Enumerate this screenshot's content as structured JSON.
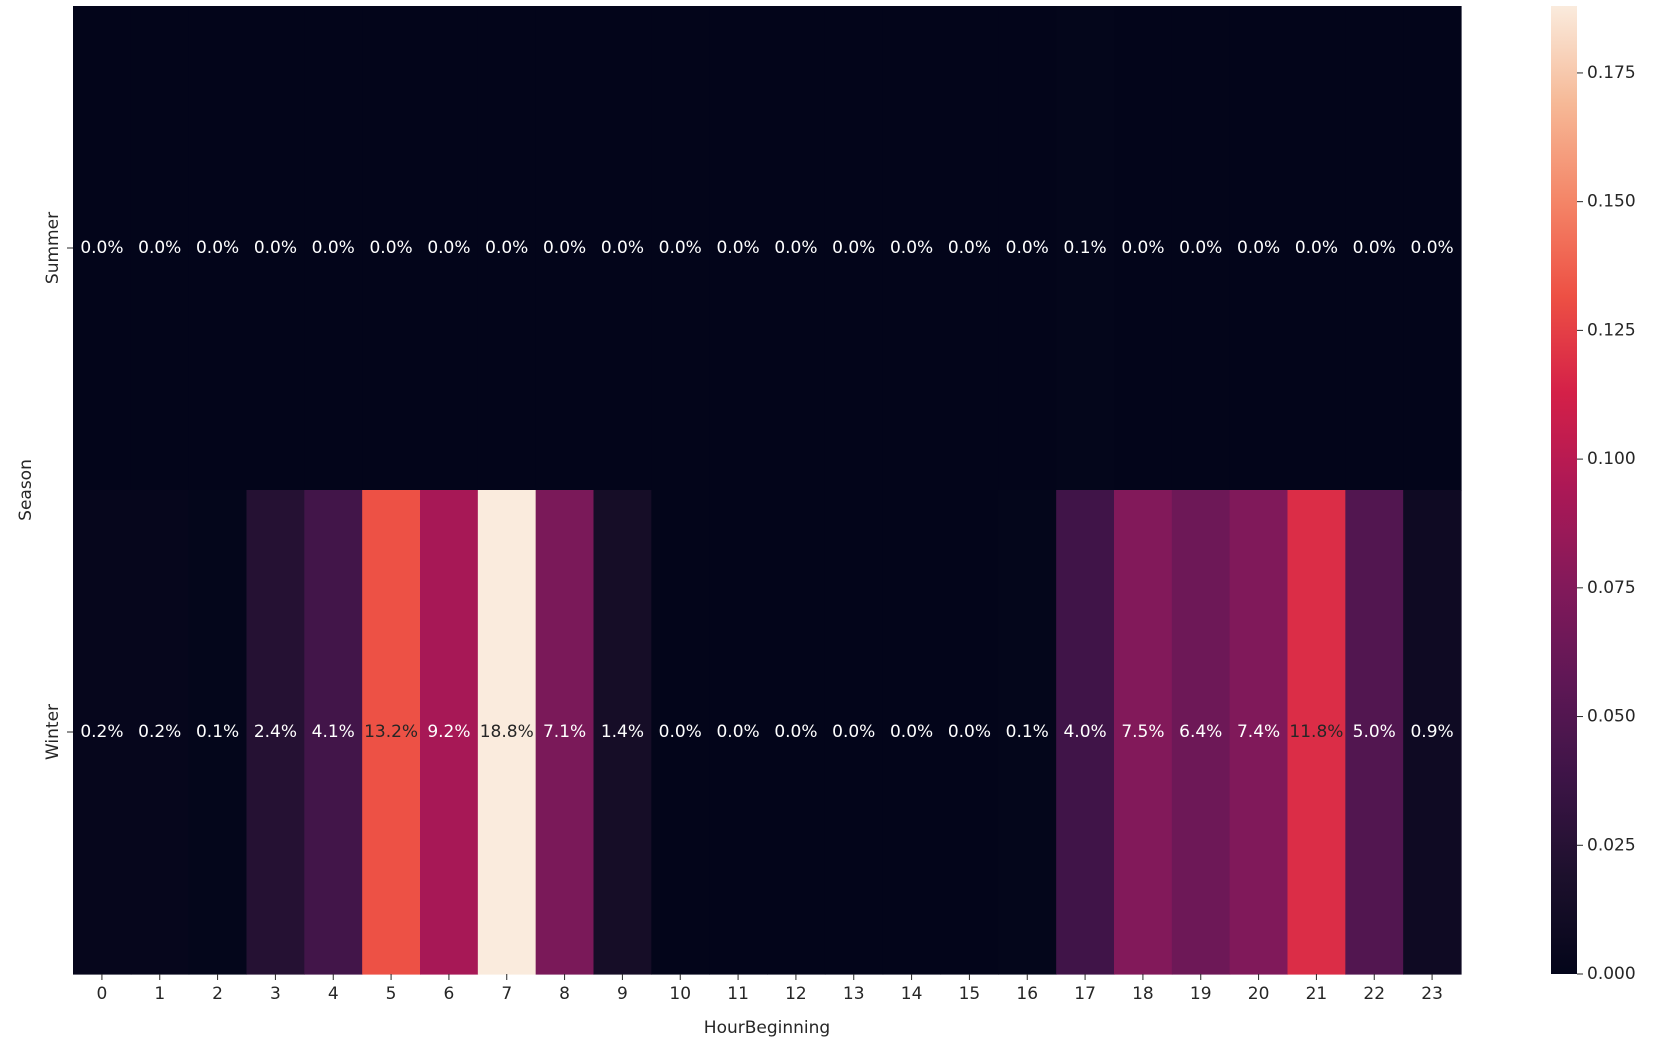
{
  "chart_data": {
    "type": "heatmap",
    "title": "",
    "xlabel": "HourBeginning",
    "ylabel": "Season",
    "x": [
      "0",
      "1",
      "2",
      "3",
      "4",
      "5",
      "6",
      "7",
      "8",
      "9",
      "10",
      "11",
      "12",
      "13",
      "14",
      "15",
      "16",
      "17",
      "18",
      "19",
      "20",
      "21",
      "22",
      "23"
    ],
    "y": [
      "Summer",
      "Winter"
    ],
    "values": [
      [
        0.0,
        0.0,
        0.0,
        0.0,
        0.0,
        0.0,
        0.0,
        0.0,
        0.0,
        0.0,
        0.0,
        0.0,
        0.0,
        0.0,
        0.0,
        0.0,
        0.0,
        0.001,
        0.0,
        0.0,
        0.0,
        0.0,
        0.0,
        0.0
      ],
      [
        0.002,
        0.002,
        0.001,
        0.024,
        0.041,
        0.132,
        0.092,
        0.188,
        0.071,
        0.014,
        0.0,
        0.0,
        0.0,
        0.0,
        0.0,
        0.0,
        0.001,
        0.04,
        0.075,
        0.064,
        0.074,
        0.118,
        0.05,
        0.009
      ]
    ],
    "annotations": [
      [
        "0.0%",
        "0.0%",
        "0.0%",
        "0.0%",
        "0.0%",
        "0.0%",
        "0.0%",
        "0.0%",
        "0.0%",
        "0.0%",
        "0.0%",
        "0.0%",
        "0.0%",
        "0.0%",
        "0.0%",
        "0.0%",
        "0.0%",
        "0.1%",
        "0.0%",
        "0.0%",
        "0.0%",
        "0.0%",
        "0.0%",
        "0.0%"
      ],
      [
        "0.2%",
        "0.2%",
        "0.1%",
        "2.4%",
        "4.1%",
        "13.2%",
        "9.2%",
        "18.8%",
        "7.1%",
        "1.4%",
        "0.0%",
        "0.0%",
        "0.0%",
        "0.0%",
        "0.0%",
        "0.0%",
        "0.1%",
        "4.0%",
        "7.5%",
        "6.4%",
        "7.4%",
        "11.8%",
        "5.0%",
        "0.9%"
      ]
    ],
    "colorbar": {
      "min": 0.0,
      "max": 0.188,
      "ticks": [
        0.0,
        0.025,
        0.05,
        0.075,
        0.1,
        0.125,
        0.15,
        0.175
      ],
      "tick_labels": [
        "0.000",
        "0.025",
        "0.050",
        "0.075",
        "0.100",
        "0.125",
        "0.150",
        "0.175"
      ]
    },
    "colormap": "rocket",
    "grid": false
  }
}
